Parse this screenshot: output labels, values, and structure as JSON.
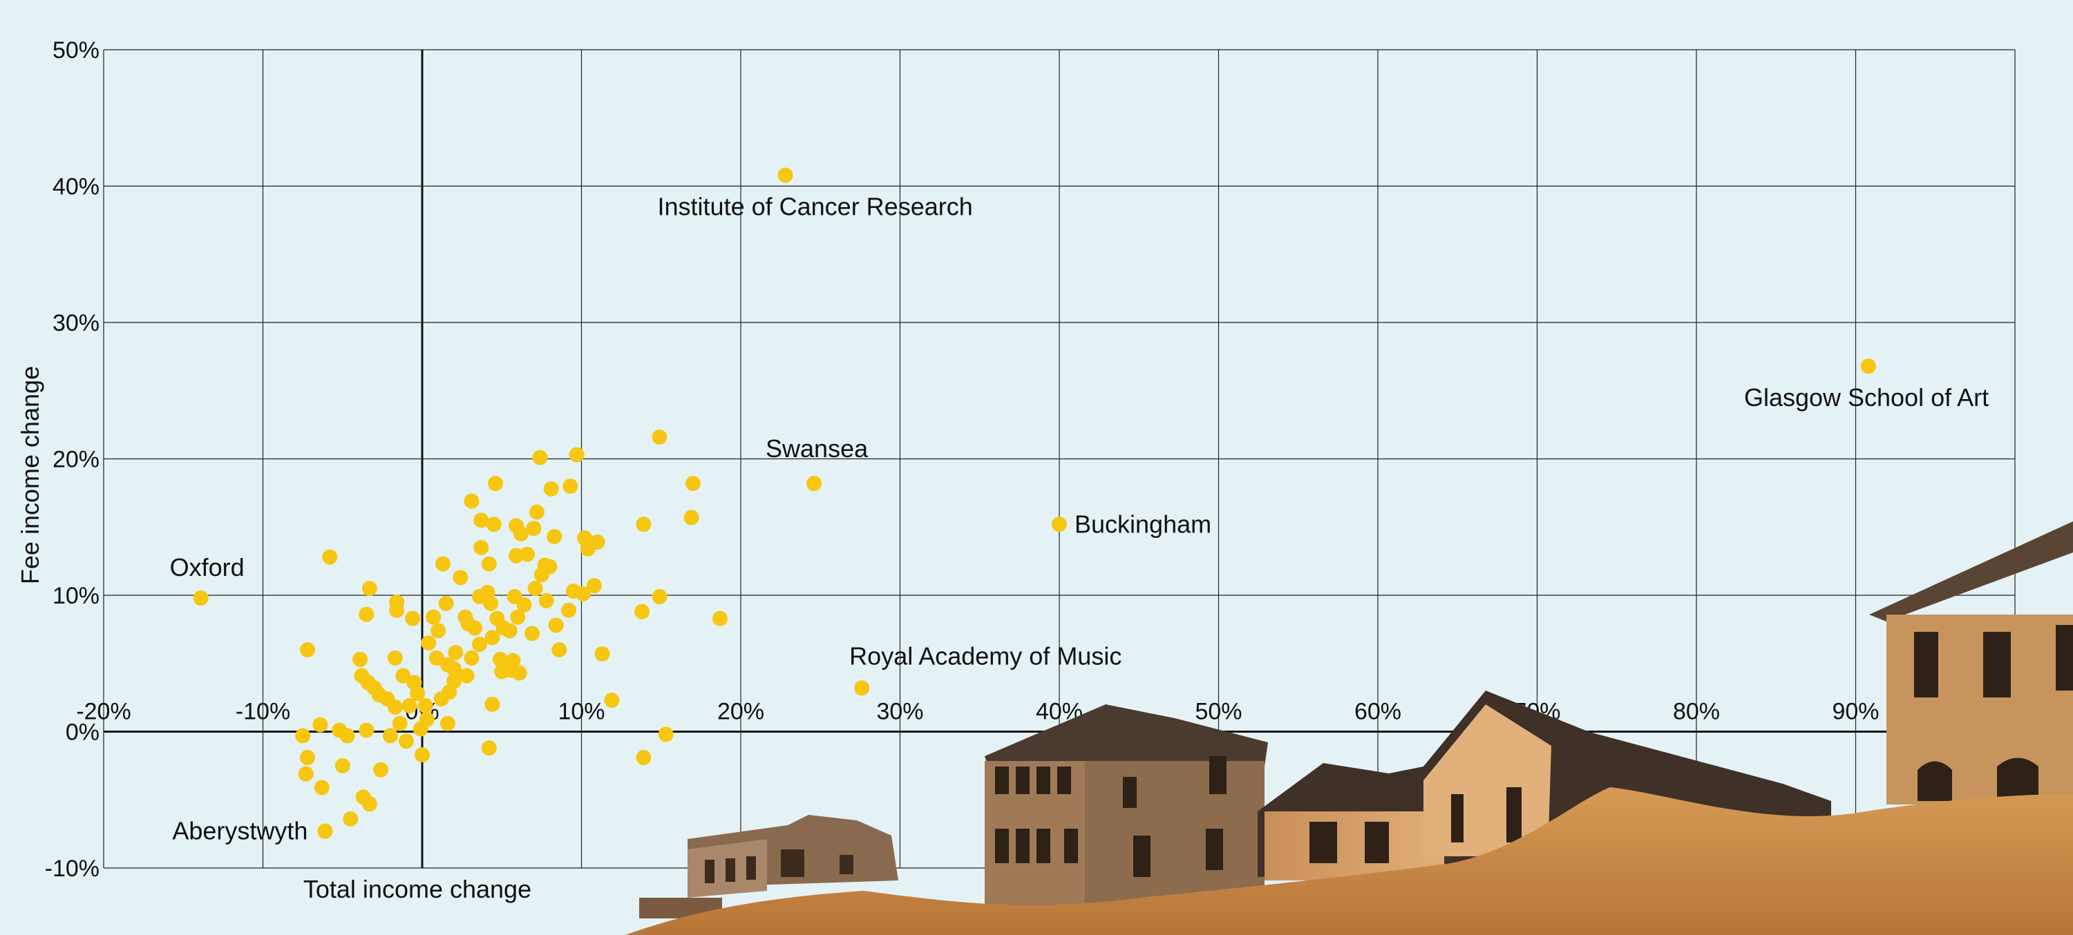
{
  "chart_data": {
    "type": "scatter",
    "xlabel": "Total income change",
    "ylabel": "Fee income change",
    "xlim": [
      -20,
      100
    ],
    "ylim": [
      -10,
      50
    ],
    "x_ticks": [
      -20,
      -10,
      0,
      10,
      20,
      30,
      40,
      50,
      60,
      70,
      80,
      90
    ],
    "y_ticks": [
      -10,
      0,
      10,
      20,
      30,
      40,
      50
    ],
    "x_tick_labels": [
      "-20%",
      "-10%",
      "0%",
      "10%",
      "20%",
      "30%",
      "40%",
      "50%",
      "60%",
      "70%",
      "80%",
      "90%"
    ],
    "y_tick_labels": [
      "-10%",
      "0%",
      "10%",
      "20%",
      "30%",
      "40%",
      "50%"
    ],
    "grid": true,
    "point_color": "#f6c611",
    "annotations": [
      {
        "label": "Institute of Cancer Research",
        "x": 22.8,
        "y": 40.8
      },
      {
        "label": "Glasgow School of Art",
        "x": 90.8,
        "y": 26.8
      },
      {
        "label": "Swansea",
        "x": 24.6,
        "y": 18.2
      },
      {
        "label": "Buckingham",
        "x": 40.0,
        "y": 15.2
      },
      {
        "label": "Oxford",
        "x": -13.9,
        "y": 9.8
      },
      {
        "label": "Royal Academy of Music",
        "x": 27.6,
        "y": 3.2
      },
      {
        "label": "Aberystwyth",
        "x": -6.1,
        "y": -7.3
      }
    ],
    "points": [
      [
        -5.8,
        12.8
      ],
      [
        -7.2,
        6.0
      ],
      [
        -3.9,
        5.3
      ],
      [
        -3.5,
        8.6
      ],
      [
        -3.3,
        10.5
      ],
      [
        -1.6,
        9.5
      ],
      [
        -1.6,
        8.9
      ],
      [
        -1.7,
        5.4
      ],
      [
        -3.8,
        4.1
      ],
      [
        -3.4,
        3.6
      ],
      [
        -3.0,
        3.2
      ],
      [
        -2.7,
        2.7
      ],
      [
        -2.2,
        2.4
      ],
      [
        -1.7,
        1.8
      ],
      [
        -1.2,
        4.1
      ],
      [
        -0.5,
        3.6
      ],
      [
        -0.3,
        2.8
      ],
      [
        -0.8,
        1.9
      ],
      [
        -1.4,
        0.6
      ],
      [
        -2.0,
        -0.3
      ],
      [
        -3.5,
        0.1
      ],
      [
        -4.7,
        -0.3
      ],
      [
        -5.2,
        0.1
      ],
      [
        -6.4,
        0.5
      ],
      [
        -7.5,
        -0.3
      ],
      [
        -7.2,
        -1.9
      ],
      [
        -7.3,
        -3.1
      ],
      [
        -6.3,
        -4.1
      ],
      [
        -5.0,
        -2.5
      ],
      [
        -2.6,
        -2.8
      ],
      [
        -3.7,
        -4.8
      ],
      [
        -3.3,
        -5.3
      ],
      [
        -4.5,
        -6.4
      ],
      [
        -6.1,
        -7.3
      ],
      [
        -1.0,
        -0.7
      ],
      [
        -0.1,
        0.2
      ],
      [
        0.0,
        -1.7
      ],
      [
        0.2,
        1.9
      ],
      [
        0.3,
        0.9
      ],
      [
        -0.6,
        8.3
      ],
      [
        1.3,
        12.3
      ],
      [
        2.4,
        11.3
      ],
      [
        1.5,
        9.4
      ],
      [
        0.7,
        8.4
      ],
      [
        1.0,
        7.4
      ],
      [
        0.4,
        6.5
      ],
      [
        0.9,
        5.4
      ],
      [
        1.6,
        4.9
      ],
      [
        2.1,
        5.8
      ],
      [
        1.2,
        2.4
      ],
      [
        1.6,
        0.6
      ],
      [
        1.7,
        2.9
      ],
      [
        2.0,
        3.7
      ],
      [
        2.7,
        8.4
      ],
      [
        2.9,
        7.9
      ],
      [
        3.3,
        7.6
      ],
      [
        3.6,
        6.4
      ],
      [
        3.1,
        5.4
      ],
      [
        2.8,
        4.1
      ],
      [
        3.6,
        9.9
      ],
      [
        3.1,
        16.9
      ],
      [
        3.7,
        15.5
      ],
      [
        4.5,
        15.2
      ],
      [
        4.6,
        18.2
      ],
      [
        3.7,
        13.5
      ],
      [
        4.2,
        12.3
      ],
      [
        4.1,
        10.2
      ],
      [
        4.3,
        9.4
      ],
      [
        4.7,
        8.3
      ],
      [
        5.1,
        7.6
      ],
      [
        4.4,
        6.9
      ],
      [
        4.9,
        5.3
      ],
      [
        5.0,
        4.4
      ],
      [
        5.6,
        4.5
      ],
      [
        6.1,
        4.3
      ],
      [
        5.7,
        5.2
      ],
      [
        5.5,
        7.4
      ],
      [
        6.0,
        8.4
      ],
      [
        6.4,
        9.3
      ],
      [
        5.8,
        9.9
      ],
      [
        5.9,
        12.9
      ],
      [
        6.6,
        13.0
      ],
      [
        6.2,
        14.5
      ],
      [
        5.9,
        15.1
      ],
      [
        7.0,
        14.9
      ],
      [
        7.2,
        16.1
      ],
      [
        7.4,
        20.1
      ],
      [
        8.1,
        17.8
      ],
      [
        8.3,
        14.3
      ],
      [
        7.7,
        12.2
      ],
      [
        7.5,
        11.5
      ],
      [
        8.0,
        12.1
      ],
      [
        7.1,
        10.5
      ],
      [
        7.8,
        9.6
      ],
      [
        8.4,
        7.8
      ],
      [
        6.9,
        7.2
      ],
      [
        8.6,
        6.0
      ],
      [
        9.2,
        8.9
      ],
      [
        9.3,
        18.0
      ],
      [
        9.7,
        20.3
      ],
      [
        10.1,
        10.1
      ],
      [
        9.5,
        10.3
      ],
      [
        10.2,
        14.2
      ],
      [
        10.4,
        13.4
      ],
      [
        10.8,
        10.7
      ],
      [
        11.0,
        13.9
      ],
      [
        11.3,
        5.7
      ],
      [
        11.9,
        2.3
      ],
      [
        4.2,
        -1.2
      ],
      [
        4.4,
        2.0
      ],
      [
        13.9,
        15.2
      ],
      [
        13.8,
        8.8
      ],
      [
        14.9,
        9.9
      ],
      [
        14.9,
        21.6
      ],
      [
        16.9,
        15.7
      ],
      [
        17.0,
        18.2
      ],
      [
        18.7,
        8.3
      ],
      [
        15.3,
        -0.2
      ],
      [
        13.9,
        -1.9
      ],
      [
        2.0,
        4.6
      ]
    ]
  }
}
